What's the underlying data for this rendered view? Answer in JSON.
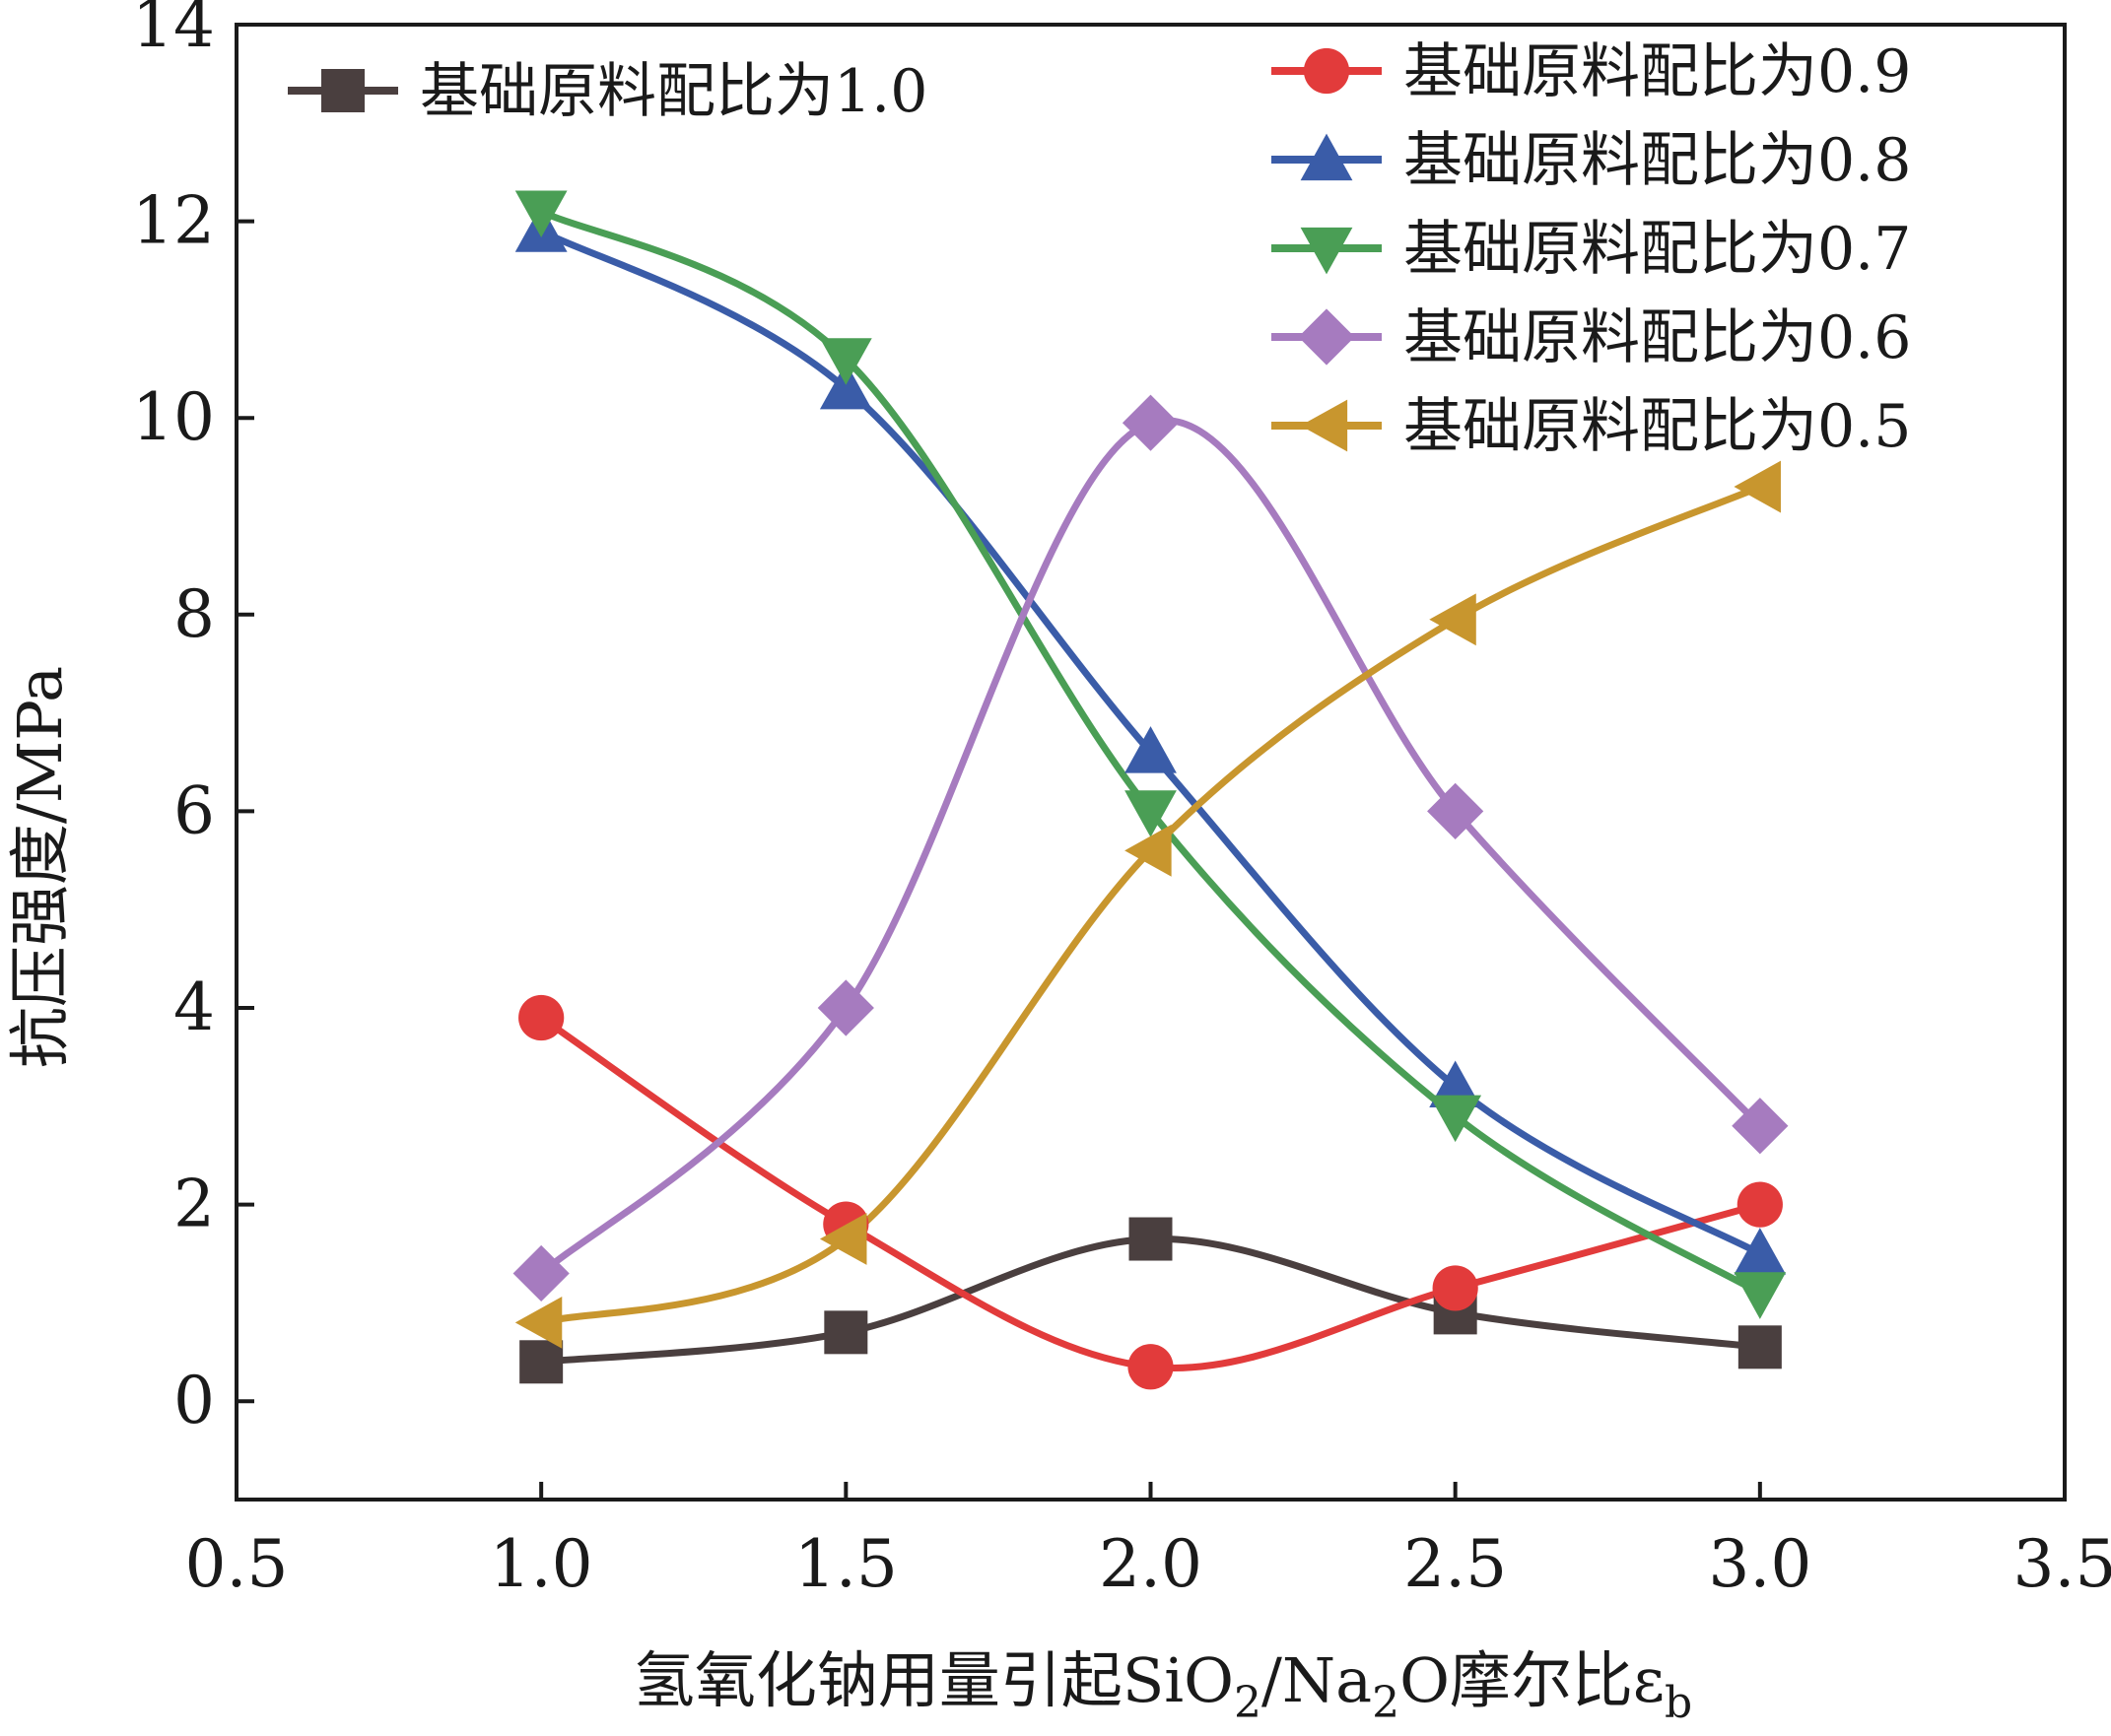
{
  "chart_data": {
    "type": "line",
    "title": "",
    "xlabel": {
      "prefix": "氢氧化钠用量引起SiO",
      "sub1": "2",
      "mid": "/Na",
      "sub2": "2",
      "suffix": "O摩尔比ε",
      "sub3": "b"
    },
    "ylabel": "抗压强度/MPa",
    "xlim": [
      0.5,
      3.5
    ],
    "ylim": [
      -1,
      14
    ],
    "xticks": [
      0.5,
      1.0,
      1.5,
      2.0,
      2.5,
      3.0,
      3.5
    ],
    "xtick_labels": [
      "0.5",
      "1.0",
      "1.5",
      "2.0",
      "2.5",
      "3.0",
      "3.5"
    ],
    "yticks": [
      0,
      2,
      4,
      6,
      8,
      10,
      12,
      14
    ],
    "ytick_labels": [
      "0",
      "2",
      "4",
      "6",
      "8",
      "10",
      "12",
      "14"
    ],
    "x": [
      1.0,
      1.5,
      2.0,
      2.5,
      3.0
    ],
    "series": [
      {
        "name": "基础原料配比为1.0",
        "color": "#4a3f3f",
        "marker": "square",
        "values": [
          0.4,
          0.7,
          1.65,
          0.9,
          0.55
        ]
      },
      {
        "name": "基础原料配比为0.9",
        "color": "#e23b3b",
        "marker": "circle",
        "values": [
          3.9,
          1.8,
          0.35,
          1.15,
          2.0
        ]
      },
      {
        "name": "基础原料配比为0.8",
        "color": "#3a5ca8",
        "marker": "triangle-up",
        "values": [
          11.9,
          10.3,
          6.6,
          3.2,
          1.5
        ]
      },
      {
        "name": "基础原料配比为0.7",
        "color": "#4a9e55",
        "marker": "triangle-down",
        "values": [
          12.1,
          10.6,
          6.0,
          2.9,
          1.1
        ]
      },
      {
        "name": "基础原料配比为0.6",
        "color": "#a67bbf",
        "marker": "diamond",
        "values": [
          1.3,
          4.0,
          9.95,
          6.0,
          2.8
        ]
      },
      {
        "name": "基础原料配比为0.5",
        "color": "#c8962e",
        "marker": "triangle-left",
        "values": [
          0.8,
          1.65,
          5.6,
          7.95,
          9.3
        ]
      }
    ],
    "legend_position": "top"
  }
}
